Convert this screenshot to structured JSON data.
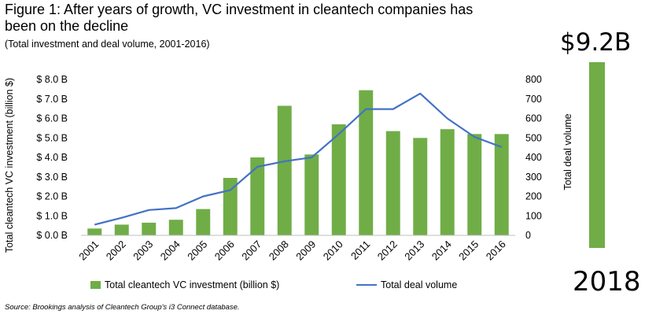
{
  "title": "Figure 1: After years of growth, VC investment in cleantech companies has been on the decline",
  "subtitle": "(Total investment and deal volume, 2001-2016)",
  "source": "Source: Brookings analysis of Cleantech Group's i3 Connect database.",
  "colors": {
    "bar": "#70AD47",
    "line": "#4472C4",
    "axis": "#bfbfbf"
  },
  "chart_data": [
    {
      "type": "bar",
      "title": "Figure 1: After years of growth, VC investment in cleantech companies has been on the decline",
      "subtitle": "(Total investment and deal volume, 2001-2016)",
      "categories": [
        "2001",
        "2002",
        "2003",
        "2004",
        "2005",
        "2006",
        "2007",
        "2008",
        "2009",
        "2010",
        "2011",
        "2012",
        "2013",
        "2014",
        "2015",
        "2016"
      ],
      "series": [
        {
          "name": "Total cleantech VC investment (billion $)",
          "type": "bar",
          "axis": "left",
          "values": [
            0.35,
            0.55,
            0.65,
            0.8,
            1.35,
            2.95,
            4.0,
            6.65,
            4.15,
            5.7,
            7.45,
            5.35,
            5.0,
            5.45,
            5.2,
            5.2
          ]
        },
        {
          "name": "Total deal volume",
          "type": "line",
          "axis": "right",
          "values": [
            55,
            90,
            130,
            140,
            200,
            232,
            352,
            380,
            400,
            520,
            648,
            648,
            728,
            600,
            505,
            453
          ]
        }
      ],
      "ylabel": "Total cleantech VC investment (billion $)",
      "ylim": [
        0,
        8
      ],
      "ytick_labels": [
        "$ 0.0 B",
        "$ 1.0 B",
        "$ 2.0 B",
        "$ 3.0 B",
        "$ 4.0 B",
        "$ 5.0 B",
        "$ 6.0 B",
        "$ 7.0 B",
        "$ 8.0 B"
      ],
      "y2lim": [
        0,
        800
      ],
      "y2tick_labels": [
        "0",
        "100",
        "200",
        "300",
        "400",
        "500",
        "600",
        "700",
        "800"
      ],
      "grid": false,
      "legend": "bottom"
    },
    {
      "type": "bar",
      "categories": [
        "2018"
      ],
      "values": [
        9.2
      ],
      "value_label": "$9.2B",
      "ylabel": "Total deal volume"
    }
  ]
}
